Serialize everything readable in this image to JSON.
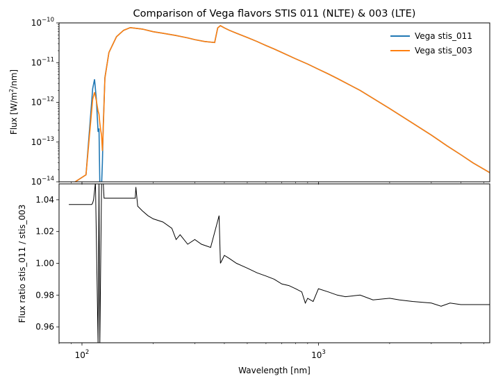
{
  "chart_data": [
    {
      "type": "line",
      "title": "Comparison of Vega flavors STIS 011 (NLTE) & 003 (LTE)",
      "xlabel": "",
      "ylabel": "Flux [W/m²/nm]",
      "ylabel_parts": {
        "pre": "Flux [W/m",
        "sup": "2",
        "post": "/nm]"
      },
      "xscale": "log",
      "yscale": "log",
      "xlim": [
        80,
        5300
      ],
      "ylim": [
        1e-14,
        1e-10
      ],
      "yticks": [
        {
          "value": 1e-14,
          "base": "10",
          "exp": "−14"
        },
        {
          "value": 1e-13,
          "base": "10",
          "exp": "−13"
        },
        {
          "value": 1e-12,
          "base": "10",
          "exp": "−12"
        },
        {
          "value": 1e-11,
          "base": "10",
          "exp": "−11"
        },
        {
          "value": 1e-10,
          "base": "10",
          "exp": "−10"
        }
      ],
      "legend_position": "top-right",
      "series": [
        {
          "name": "Vega stis_011",
          "color": "#1f77b4",
          "x": [
            88,
            104,
            111,
            113,
            115,
            117,
            118,
            119,
            120,
            121,
            122,
            123,
            125,
            130,
            140,
            150,
            160,
            180,
            200,
            220,
            250,
            280,
            300,
            330,
            364,
            375,
            385,
            400,
            420,
            450,
            500,
            550,
            600,
            650,
            700,
            800,
            900,
            1000,
            1100,
            1200,
            1500,
            2000,
            2500,
            3000,
            3500,
            4000,
            4500,
            5300
          ],
          "y": [
            6e-15,
            1.5e-14,
            2.2e-12,
            3.8e-12,
            1.2e-12,
            1.8e-13,
            2.2e-13,
            9e-15,
            5e-15,
            7e-15,
            3e-14,
            2.5e-13,
            4.2e-12,
            1.8e-11,
            4.5e-11,
            6.5e-11,
            7.6e-11,
            7e-11,
            6e-11,
            5.5e-11,
            4.8e-11,
            4.2e-11,
            3.8e-11,
            3.4e-11,
            3.2e-11,
            7.5e-11,
            8.5e-11,
            7.5e-11,
            6.5e-11,
            5.5e-11,
            4.3e-11,
            3.4e-11,
            2.7e-11,
            2.2e-11,
            1.8e-11,
            1.25e-11,
            9.2e-12,
            6.8e-12,
            5.2e-12,
            4e-12,
            2e-12,
            7e-13,
            3e-13,
            1.5e-13,
            8e-14,
            4.8e-14,
            3e-14,
            1.7e-14
          ]
        },
        {
          "name": "Vega stis_003",
          "color": "#ff7f0e",
          "x": [
            88,
            104,
            111,
            113,
            115,
            117,
            118,
            119,
            120,
            121,
            122,
            123,
            125,
            130,
            140,
            150,
            160,
            180,
            200,
            220,
            250,
            280,
            300,
            330,
            364,
            375,
            385,
            400,
            420,
            450,
            500,
            550,
            600,
            650,
            700,
            800,
            900,
            1000,
            1100,
            1200,
            1500,
            2000,
            2500,
            3000,
            3500,
            4000,
            4500,
            5300
          ],
          "y": [
            6e-15,
            1.5e-14,
            1.2e-12,
            1.8e-12,
            1.1e-12,
            6e-13,
            5e-13,
            3e-13,
            2e-13,
            1.5e-13,
            6e-14,
            2e-13,
            4e-12,
            1.8e-11,
            4.5e-11,
            6.5e-11,
            7.6e-11,
            7e-11,
            6e-11,
            5.5e-11,
            4.8e-11,
            4.2e-11,
            3.8e-11,
            3.4e-11,
            3.2e-11,
            7.5e-11,
            8.5e-11,
            7.5e-11,
            6.5e-11,
            5.5e-11,
            4.3e-11,
            3.4e-11,
            2.7e-11,
            2.2e-11,
            1.8e-11,
            1.25e-11,
            9.2e-12,
            6.8e-12,
            5.2e-12,
            4e-12,
            2e-12,
            7e-13,
            3e-13,
            1.5e-13,
            8e-14,
            4.8e-14,
            3e-14,
            1.7e-14
          ]
        }
      ]
    },
    {
      "type": "line",
      "title": "",
      "xlabel": "Wavelength [nm]",
      "ylabel": "Flux ratio stis_011 / stis_003",
      "xscale": "log",
      "yscale": "linear",
      "xlim": [
        80,
        5300
      ],
      "ylim": [
        0.95,
        1.05
      ],
      "xticks": [
        {
          "value": 100,
          "base": "10",
          "exp": "2"
        },
        {
          "value": 1000,
          "base": "10",
          "exp": "3"
        }
      ],
      "yticks": [
        "0.96",
        "0.98",
        "1.00",
        "1.02",
        "1.04"
      ],
      "series": [
        {
          "name": "ratio",
          "color": "#000000",
          "x": [
            88,
            110,
            111,
            112,
            114,
            117,
            118,
            119,
            121,
            123,
            124,
            126,
            130,
            150,
            168,
            169,
            172,
            180,
            190,
            200,
            220,
            240,
            250,
            260,
            280,
            300,
            320,
            350,
            380,
            385,
            400,
            420,
            450,
            500,
            550,
            600,
            650,
            700,
            750,
            800,
            850,
            880,
            900,
            950,
            1000,
            1100,
            1200,
            1300,
            1500,
            1700,
            2000,
            2200,
            2500,
            3000,
            3300,
            3600,
            4000,
            4500,
            5300
          ],
          "y": [
            1.037,
            1.037,
            1.038,
            1.04,
            1.055,
            0.94,
            1.055,
            0.94,
            1.05,
            1.06,
            1.041,
            1.041,
            1.041,
            1.041,
            1.041,
            1.048,
            1.036,
            1.033,
            1.03,
            1.028,
            1.026,
            1.022,
            1.015,
            1.018,
            1.012,
            1.015,
            1.012,
            1.01,
            1.03,
            1.0,
            1.005,
            1.003,
            1.0,
            0.997,
            0.994,
            0.992,
            0.99,
            0.987,
            0.986,
            0.984,
            0.982,
            0.975,
            0.978,
            0.976,
            0.984,
            0.982,
            0.98,
            0.979,
            0.98,
            0.977,
            0.978,
            0.977,
            0.976,
            0.975,
            0.973,
            0.975,
            0.974,
            0.974,
            0.974
          ]
        }
      ]
    }
  ]
}
